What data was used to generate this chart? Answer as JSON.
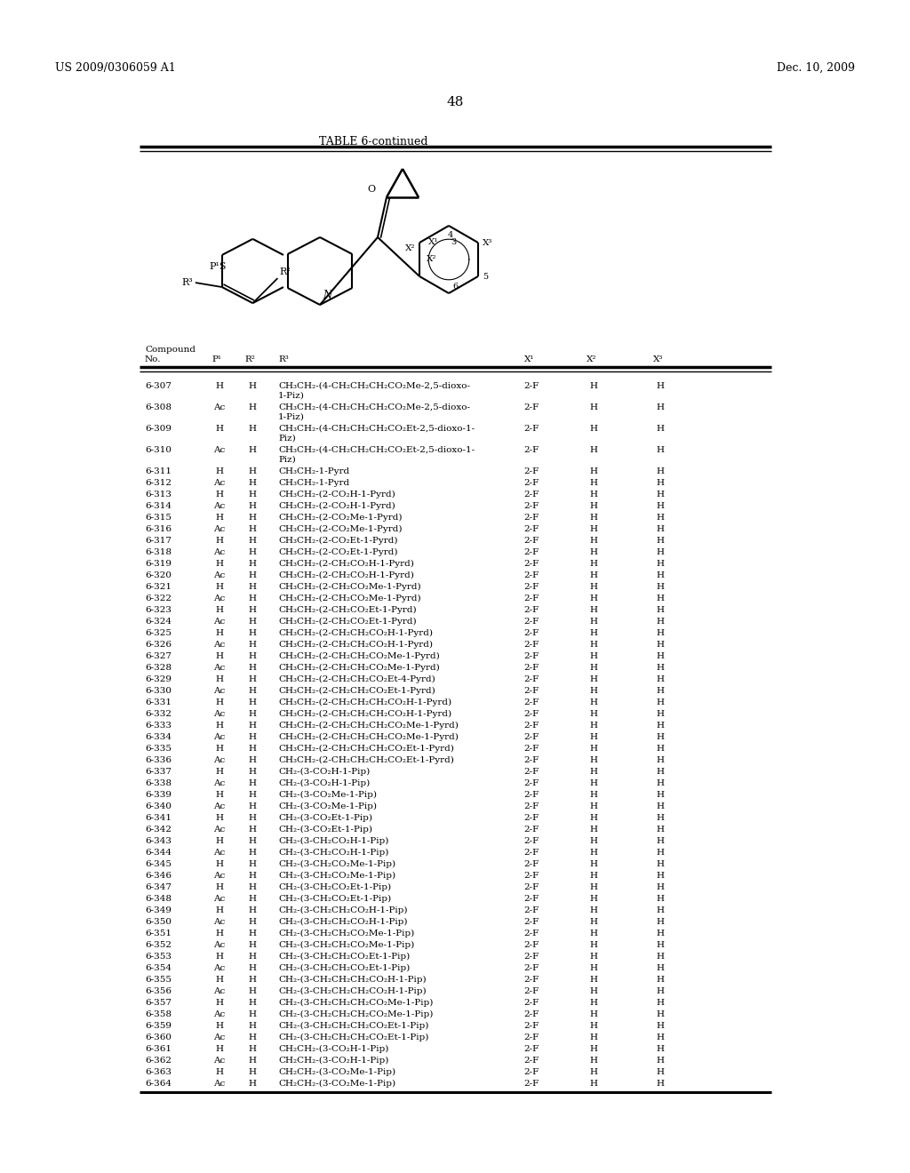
{
  "header_left": "US 2009/0306059 A1",
  "header_right": "Dec. 10, 2009",
  "page_number": "48",
  "table_title": "TABLE 6-continued",
  "background_color": "#ffffff",
  "text_color": "#000000",
  "rows": [
    [
      "6-307",
      "H",
      "H",
      "CH₃CH₂-(4-CH₂CH₂CH₂CO₂Me-2,5-dioxo-\n1-Piz)",
      "2-F",
      "H",
      "H"
    ],
    [
      "6-308",
      "Ac",
      "H",
      "CH₃CH₂-(4-CH₂CH₂CH₂CO₂Me-2,5-dioxo-\n1-Piz)",
      "2-F",
      "H",
      "H"
    ],
    [
      "6-309",
      "H",
      "H",
      "CH₃CH₂-(4-CH₂CH₂CH₂CO₂Et-2,5-dioxo-1-\nPiz)",
      "2-F",
      "H",
      "H"
    ],
    [
      "6-310",
      "Ac",
      "H",
      "CH₃CH₂-(4-CH₂CH₂CH₂CO₂Et-2,5-dioxo-1-\nPiz)",
      "2-F",
      "H",
      "H"
    ],
    [
      "6-311",
      "H",
      "H",
      "CH₃CH₂-1-Pyrd",
      "2-F",
      "H",
      "H"
    ],
    [
      "6-312",
      "Ac",
      "H",
      "CH₃CH₂-1-Pyrd",
      "2-F",
      "H",
      "H"
    ],
    [
      "6-313",
      "H",
      "H",
      "CH₃CH₂-(2-CO₂H-1-Pyrd)",
      "2-F",
      "H",
      "H"
    ],
    [
      "6-314",
      "Ac",
      "H",
      "CH₃CH₂-(2-CO₂H-1-Pyrd)",
      "2-F",
      "H",
      "H"
    ],
    [
      "6-315",
      "H",
      "H",
      "CH₃CH₂-(2-CO₂Me-1-Pyrd)",
      "2-F",
      "H",
      "H"
    ],
    [
      "6-316",
      "Ac",
      "H",
      "CH₃CH₂-(2-CO₂Me-1-Pyrd)",
      "2-F",
      "H",
      "H"
    ],
    [
      "6-317",
      "H",
      "H",
      "CH₃CH₂-(2-CO₂Et-1-Pyrd)",
      "2-F",
      "H",
      "H"
    ],
    [
      "6-318",
      "Ac",
      "H",
      "CH₃CH₂-(2-CO₂Et-1-Pyrd)",
      "2-F",
      "H",
      "H"
    ],
    [
      "6-319",
      "H",
      "H",
      "CH₃CH₂-(2-CH₂CO₂H-1-Pyrd)",
      "2-F",
      "H",
      "H"
    ],
    [
      "6-320",
      "Ac",
      "H",
      "CH₃CH₂-(2-CH₂CO₂H-1-Pyrd)",
      "2-F",
      "H",
      "H"
    ],
    [
      "6-321",
      "H",
      "H",
      "CH₃CH₂-(2-CH₂CO₂Me-1-Pyrd)",
      "2-F",
      "H",
      "H"
    ],
    [
      "6-322",
      "Ac",
      "H",
      "CH₃CH₂-(2-CH₂CO₂Me-1-Pyrd)",
      "2-F",
      "H",
      "H"
    ],
    [
      "6-323",
      "H",
      "H",
      "CH₃CH₂-(2-CH₂CO₂Et-1-Pyrd)",
      "2-F",
      "H",
      "H"
    ],
    [
      "6-324",
      "Ac",
      "H",
      "CH₃CH₂-(2-CH₂CO₂Et-1-Pyrd)",
      "2-F",
      "H",
      "H"
    ],
    [
      "6-325",
      "H",
      "H",
      "CH₃CH₂-(2-CH₂CH₂CO₂H-1-Pyrd)",
      "2-F",
      "H",
      "H"
    ],
    [
      "6-326",
      "Ac",
      "H",
      "CH₃CH₂-(2-CH₂CH₂CO₂H-1-Pyrd)",
      "2-F",
      "H",
      "H"
    ],
    [
      "6-327",
      "H",
      "H",
      "CH₃CH₂-(2-CH₂CH₂CO₂Me-1-Pyrd)",
      "2-F",
      "H",
      "H"
    ],
    [
      "6-328",
      "Ac",
      "H",
      "CH₃CH₂-(2-CH₂CH₂CO₂Me-1-Pyrd)",
      "2-F",
      "H",
      "H"
    ],
    [
      "6-329",
      "H",
      "H",
      "CH₃CH₂-(2-CH₂CH₂CO₂Et-4-Pyrd)",
      "2-F",
      "H",
      "H"
    ],
    [
      "6-330",
      "Ac",
      "H",
      "CH₃CH₂-(2-CH₂CH₂CO₂Et-1-Pyrd)",
      "2-F",
      "H",
      "H"
    ],
    [
      "6-331",
      "H",
      "H",
      "CH₃CH₂-(2-CH₂CH₂CH₂CO₂H-1-Pyrd)",
      "2-F",
      "H",
      "H"
    ],
    [
      "6-332",
      "Ac",
      "H",
      "CH₃CH₂-(2-CH₂CH₂CH₂CO₂H-1-Pyrd)",
      "2-F",
      "H",
      "H"
    ],
    [
      "6-333",
      "H",
      "H",
      "CH₃CH₂-(2-CH₂CH₂CH₂CO₂Me-1-Pyrd)",
      "2-F",
      "H",
      "H"
    ],
    [
      "6-334",
      "Ac",
      "H",
      "CH₃CH₂-(2-CH₂CH₂CH₂CO₂Me-1-Pyrd)",
      "2-F",
      "H",
      "H"
    ],
    [
      "6-335",
      "H",
      "H",
      "CH₃CH₂-(2-CH₂CH₂CH₂CO₂Et-1-Pyrd)",
      "2-F",
      "H",
      "H"
    ],
    [
      "6-336",
      "Ac",
      "H",
      "CH₃CH₂-(2-CH₂CH₂CH₂CO₂Et-1-Pyrd)",
      "2-F",
      "H",
      "H"
    ],
    [
      "6-337",
      "H",
      "H",
      "CH₂-(3-CO₂H-1-Pip)",
      "2-F",
      "H",
      "H"
    ],
    [
      "6-338",
      "Ac",
      "H",
      "CH₂-(3-CO₂H-1-Pip)",
      "2-F",
      "H",
      "H"
    ],
    [
      "6-339",
      "H",
      "H",
      "CH₂-(3-CO₂Me-1-Pip)",
      "2-F",
      "H",
      "H"
    ],
    [
      "6-340",
      "Ac",
      "H",
      "CH₂-(3-CO₂Me-1-Pip)",
      "2-F",
      "H",
      "H"
    ],
    [
      "6-341",
      "H",
      "H",
      "CH₂-(3-CO₂Et-1-Pip)",
      "2-F",
      "H",
      "H"
    ],
    [
      "6-342",
      "Ac",
      "H",
      "CH₂-(3-CO₂Et-1-Pip)",
      "2-F",
      "H",
      "H"
    ],
    [
      "6-343",
      "H",
      "H",
      "CH₂-(3-CH₂CO₂H-1-Pip)",
      "2-F",
      "H",
      "H"
    ],
    [
      "6-344",
      "Ac",
      "H",
      "CH₂-(3-CH₂CO₂H-1-Pip)",
      "2-F",
      "H",
      "H"
    ],
    [
      "6-345",
      "H",
      "H",
      "CH₂-(3-CH₂CO₂Me-1-Pip)",
      "2-F",
      "H",
      "H"
    ],
    [
      "6-346",
      "Ac",
      "H",
      "CH₂-(3-CH₂CO₂Me-1-Pip)",
      "2-F",
      "H",
      "H"
    ],
    [
      "6-347",
      "H",
      "H",
      "CH₂-(3-CH₂CO₂Et-1-Pip)",
      "2-F",
      "H",
      "H"
    ],
    [
      "6-348",
      "Ac",
      "H",
      "CH₂-(3-CH₂CO₂Et-1-Pip)",
      "2-F",
      "H",
      "H"
    ],
    [
      "6-349",
      "H",
      "H",
      "CH₂-(3-CH₂CH₂CO₂H-1-Pip)",
      "2-F",
      "H",
      "H"
    ],
    [
      "6-350",
      "Ac",
      "H",
      "CH₂-(3-CH₂CH₂CO₂H-1-Pip)",
      "2-F",
      "H",
      "H"
    ],
    [
      "6-351",
      "H",
      "H",
      "CH₂-(3-CH₂CH₂CO₂Me-1-Pip)",
      "2-F",
      "H",
      "H"
    ],
    [
      "6-352",
      "Ac",
      "H",
      "CH₂-(3-CH₂CH₂CO₂Me-1-Pip)",
      "2-F",
      "H",
      "H"
    ],
    [
      "6-353",
      "H",
      "H",
      "CH₂-(3-CH₂CH₂CO₂Et-1-Pip)",
      "2-F",
      "H",
      "H"
    ],
    [
      "6-354",
      "Ac",
      "H",
      "CH₂-(3-CH₂CH₂CO₂Et-1-Pip)",
      "2-F",
      "H",
      "H"
    ],
    [
      "6-355",
      "H",
      "H",
      "CH₂-(3-CH₂CH₂CH₂CO₂H-1-Pip)",
      "2-F",
      "H",
      "H"
    ],
    [
      "6-356",
      "Ac",
      "H",
      "CH₂-(3-CH₂CH₂CH₂CO₂H-1-Pip)",
      "2-F",
      "H",
      "H"
    ],
    [
      "6-357",
      "H",
      "H",
      "CH₂-(3-CH₂CH₂CH₂CO₂Me-1-Pip)",
      "2-F",
      "H",
      "H"
    ],
    [
      "6-358",
      "Ac",
      "H",
      "CH₂-(3-CH₂CH₂CH₂CO₂Me-1-Pip)",
      "2-F",
      "H",
      "H"
    ],
    [
      "6-359",
      "H",
      "H",
      "CH₂-(3-CH₂CH₂CH₂CO₂Et-1-Pip)",
      "2-F",
      "H",
      "H"
    ],
    [
      "6-360",
      "Ac",
      "H",
      "CH₂-(3-CH₂CH₂CH₂CO₂Et-1-Pip)",
      "2-F",
      "H",
      "H"
    ],
    [
      "6-361",
      "H",
      "H",
      "CH₂CH₂-(3-CO₂H-1-Pip)",
      "2-F",
      "H",
      "H"
    ],
    [
      "6-362",
      "Ac",
      "H",
      "CH₂CH₂-(3-CO₂H-1-Pip)",
      "2-F",
      "H",
      "H"
    ],
    [
      "6-363",
      "H",
      "H",
      "CH₂CH₂-(3-CO₂Me-1-Pip)",
      "2-F",
      "H",
      "H"
    ],
    [
      "6-364",
      "Ac",
      "H",
      "CH₂CH₂-(3-CO₂Me-1-Pip)",
      "2-F",
      "H",
      "H"
    ]
  ]
}
